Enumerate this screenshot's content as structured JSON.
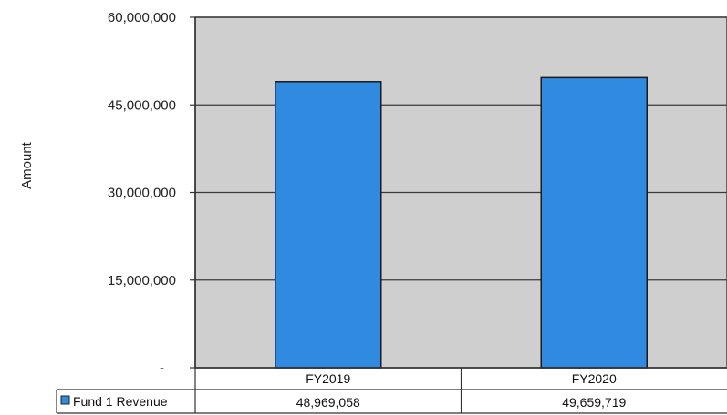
{
  "chart_data": {
    "type": "bar",
    "ylabel": "Amount",
    "ylim": [
      0,
      60000000
    ],
    "yticks": [
      {
        "value": 0,
        "label": "-"
      },
      {
        "value": 15000000,
        "label": "15,000,000"
      },
      {
        "value": 30000000,
        "label": "30,000,000"
      },
      {
        "value": 45000000,
        "label": "45,000,000"
      },
      {
        "value": 60000000,
        "label": "60,000,000"
      }
    ],
    "categories": [
      "FY2019",
      "FY2020"
    ],
    "series": [
      {
        "name": "Fund 1 Revenue",
        "values": [
          48969058,
          49659719
        ],
        "value_labels": [
          "48,969,058",
          "49,659,719"
        ],
        "color": "#2f8ae0"
      }
    ],
    "grid": true,
    "plot_background": "#cfcfcf",
    "data_table": true
  }
}
